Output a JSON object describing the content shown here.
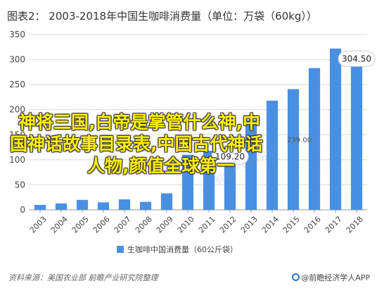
{
  "title": "图表2：  2003-2018年中国生咖啡消费量（单位：万袋（60kg））",
  "source_label": "资料来源：美国农业部 前瞻产业研究院整理",
  "brand_label": "@前瞻经济学人APP",
  "overlay": {
    "line1": "神将三国,白帝是掌管什么神,中",
    "line2": "国神话故事目录表,中国古代神话",
    "line3": "人物,颜值全球第一"
  },
  "watermark": "前瞻产业研究院",
  "tag_right": "239.00",
  "colors": {
    "bar": "#4a90e2",
    "grid": "#d9d9d9",
    "axis": "#999999",
    "text": "#444444"
  },
  "chart_data": {
    "type": "bar",
    "categories": [
      "2003",
      "2004",
      "2005",
      "2006",
      "2007",
      "2008",
      "2009",
      "2010",
      "2011",
      "2012",
      "2013",
      "2014",
      "2015",
      "2016",
      "2017",
      "2018"
    ],
    "series": [
      {
        "name": "生咖啡中国消费量（60公斤袋）",
        "values": [
          10,
          13,
          20,
          15,
          21,
          16,
          33,
          110,
          118,
          109.2,
          179,
          218,
          241,
          283,
          322,
          304.5
        ]
      }
    ],
    "ylim": [
      0,
      350
    ],
    "yticks": [
      0,
      50,
      100,
      150,
      200,
      250,
      300,
      350
    ],
    "grid": true,
    "legend_position": "bottom",
    "data_labels": [
      {
        "category": "2012",
        "text": "109.20"
      },
      {
        "category": "2018",
        "text": "304.50"
      }
    ]
  }
}
